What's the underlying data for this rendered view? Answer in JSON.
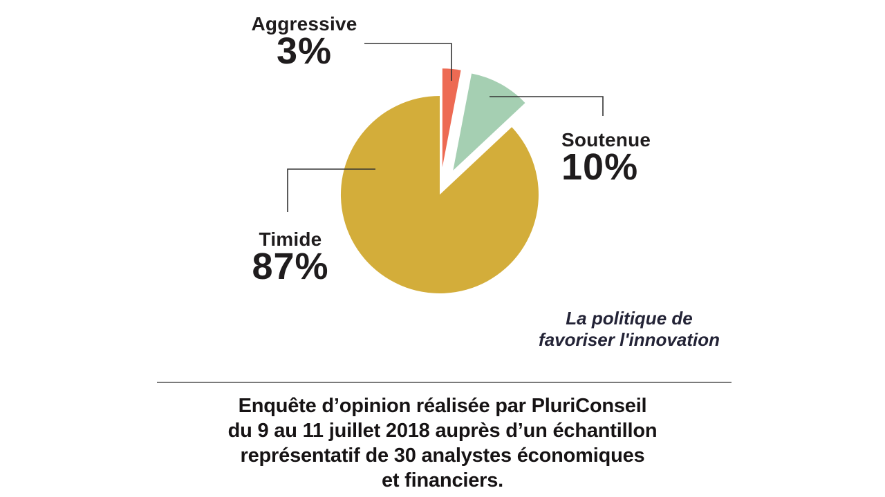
{
  "chart_data": {
    "type": "pie",
    "title": "La politique de favoriser l'innovation",
    "order": "clockwise from 12 o'clock",
    "start_angle_deg": 0,
    "legend": "none, outside labels with leader lines",
    "slices": [
      {
        "label": "Aggressive",
        "value": 3,
        "display": "3%",
        "color": "#ed6a53",
        "exploded": true
      },
      {
        "label": "Soutenue",
        "value": 10,
        "display": "10%",
        "color": "#a5cfb2",
        "exploded": true
      },
      {
        "label": "Timide",
        "value": 87,
        "display": "87%",
        "color": "#d3ad3a",
        "exploded": false
      }
    ]
  },
  "caption": {
    "line1": "La politique de",
    "line2": "favoriser l'innovation"
  },
  "footer": {
    "line1": "Enquête d’opinion réalisée par PluriConseil",
    "line2": "du 9 au 11 juillet 2018 auprès d’un échantillon",
    "line3": "représentatif de 30 analystes économiques",
    "line4": "et financiers."
  },
  "colors": {
    "slice_aggressive": "#ed6a53",
    "slice_soutenue": "#a5cfb2",
    "slice_timide": "#d3ad3a",
    "label_text": "#1f1c1d",
    "caption_text": "#232336",
    "connector_line": "#333333",
    "separator_line": "#7b7b7b",
    "background": "#ffffff"
  }
}
